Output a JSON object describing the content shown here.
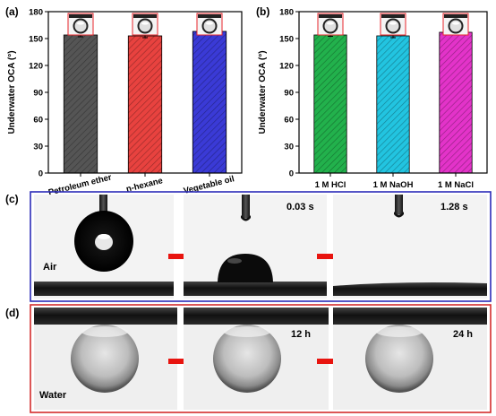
{
  "chart_data": [
    {
      "type": "bar",
      "panel": "(a)",
      "categories": [
        "Petroleum ether",
        "n-hexane",
        "Vegetable oil"
      ],
      "values": [
        154,
        153,
        158
      ],
      "errors": [
        2,
        2,
        1.5
      ],
      "colors": [
        "#555555",
        "#e8423f",
        "#3a3ad6"
      ],
      "title": "",
      "xlabel": "",
      "ylabel": "Underwater OCA (°)",
      "ylim": [
        0,
        180
      ],
      "yticks": [
        0,
        30,
        60,
        90,
        120,
        150,
        180
      ],
      "grid": false,
      "legend": "none"
    },
    {
      "type": "bar",
      "panel": "(b)",
      "categories": [
        "1 M HCl",
        "1 M NaOH",
        "1 M NaCl"
      ],
      "values": [
        154,
        153,
        157
      ],
      "errors": [
        1.5,
        2,
        1.5
      ],
      "colors": [
        "#22b14c",
        "#22c4e0",
        "#e333c9"
      ],
      "title": "",
      "xlabel": "",
      "ylabel": "Underwater OCA (°)",
      "ylim": [
        0,
        180
      ],
      "yticks": [
        0,
        30,
        60,
        90,
        120,
        150,
        180
      ],
      "grid": false,
      "legend": "none"
    }
  ],
  "panel_c": {
    "label": "(c)",
    "medium": "Air",
    "times": [
      "0.03 s",
      "1.28 s"
    ],
    "border_color": "#2b2bb8"
  },
  "panel_d": {
    "label": "(d)",
    "medium": "Water",
    "times": [
      "12 h",
      "24 h"
    ],
    "border_color": "#d42c2c"
  },
  "arrow_color": "#e8140f"
}
